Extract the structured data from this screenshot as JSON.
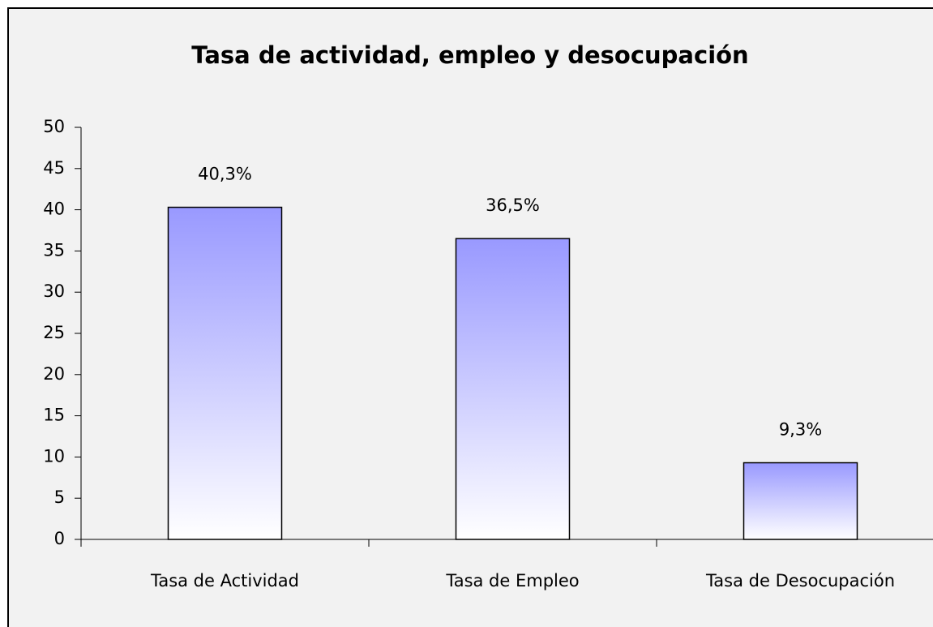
{
  "chart_data": {
    "type": "bar",
    "title": "Tasa de actividad, empleo y desocupación",
    "categories": [
      "Tasa de Actividad",
      "Tasa de Empleo",
      "Tasa de Desocupación"
    ],
    "values": [
      40.3,
      36.5,
      9.3
    ],
    "value_labels": [
      "40,3%",
      "36,5%",
      "9,3%"
    ],
    "color": "#9999ff",
    "ylim": [
      0,
      50
    ],
    "yticks": [
      0,
      5,
      10,
      15,
      20,
      25,
      30,
      35,
      40,
      45,
      50
    ],
    "grid": false
  }
}
